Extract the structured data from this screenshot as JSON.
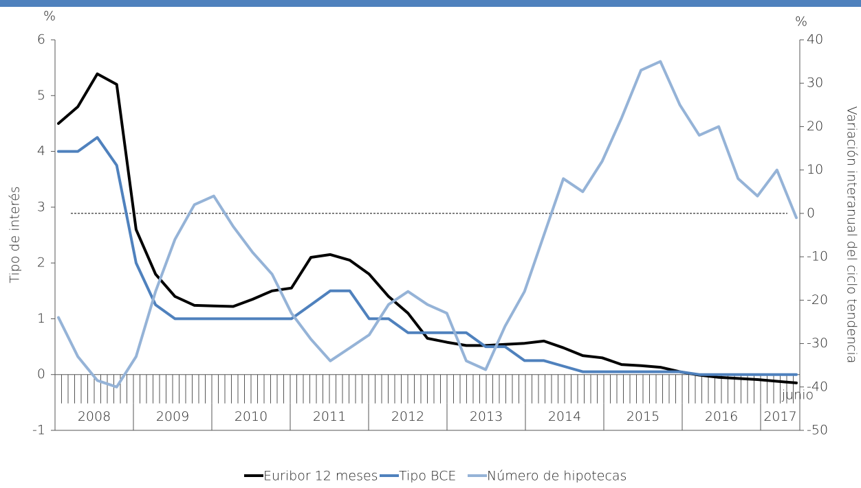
{
  "chart_data": {
    "type": "line",
    "y_label": "Tipo de interés",
    "y2_label": "Variación interanual del ciclo tendencia",
    "y_unit": "%",
    "y2_unit": "%",
    "annotation": "junio",
    "year_labels": [
      "2008",
      "2009",
      "2010",
      "2011",
      "2012",
      "2013",
      "2014",
      "2015",
      "2016",
      "2017"
    ],
    "ylim": [
      -1,
      6
    ],
    "yticks": [
      -1,
      0,
      1,
      2,
      3,
      4,
      5,
      6
    ],
    "y2lim": [
      -50,
      40
    ],
    "y2ticks": [
      -50,
      -40,
      -30,
      -20,
      -10,
      0,
      10,
      20,
      30,
      40
    ],
    "y2_reference": 0,
    "series": [
      {
        "name": "Euribor 12 meses",
        "color": "#000000",
        "values": [
          4.5,
          4.8,
          5.39,
          5.2,
          2.6,
          1.8,
          1.4,
          1.24,
          1.23,
          1.22,
          1.35,
          1.5,
          1.55,
          2.1,
          2.15,
          2.05,
          1.8,
          1.4,
          1.1,
          0.65,
          0.58,
          0.52,
          0.52,
          0.54,
          0.56,
          0.6,
          0.48,
          0.34,
          0.3,
          0.18,
          0.16,
          0.13,
          0.05,
          -0.01,
          -0.05,
          -0.07,
          -0.09,
          -0.12,
          -0.15
        ]
      },
      {
        "name": "Tipo BCE",
        "color": "#4f81bd",
        "values": [
          4,
          4,
          4.25,
          3.75,
          2,
          1.25,
          1,
          1,
          1,
          1,
          1,
          1,
          1,
          1.25,
          1.5,
          1.5,
          1,
          1,
          0.75,
          0.75,
          0.75,
          0.75,
          0.5,
          0.5,
          0.25,
          0.25,
          0.15,
          0.05,
          0.05,
          0.05,
          0.05,
          0.05,
          0.05,
          0,
          0,
          0,
          0,
          0,
          0
        ]
      },
      {
        "name": "Número de hipotecas",
        "color": "#95b3d7",
        "axis": "y2",
        "values": [
          -24,
          -33,
          -38.5,
          -40,
          -33,
          -18,
          -6,
          2,
          4,
          -3,
          -9,
          -14,
          -23,
          -29,
          -34,
          -31,
          -28,
          -21,
          -18,
          -21,
          -23,
          -34,
          -36,
          -26,
          -18,
          -5,
          8,
          5,
          12,
          22,
          33,
          35,
          25,
          18,
          20,
          8,
          4,
          10,
          -1
        ]
      }
    ]
  }
}
